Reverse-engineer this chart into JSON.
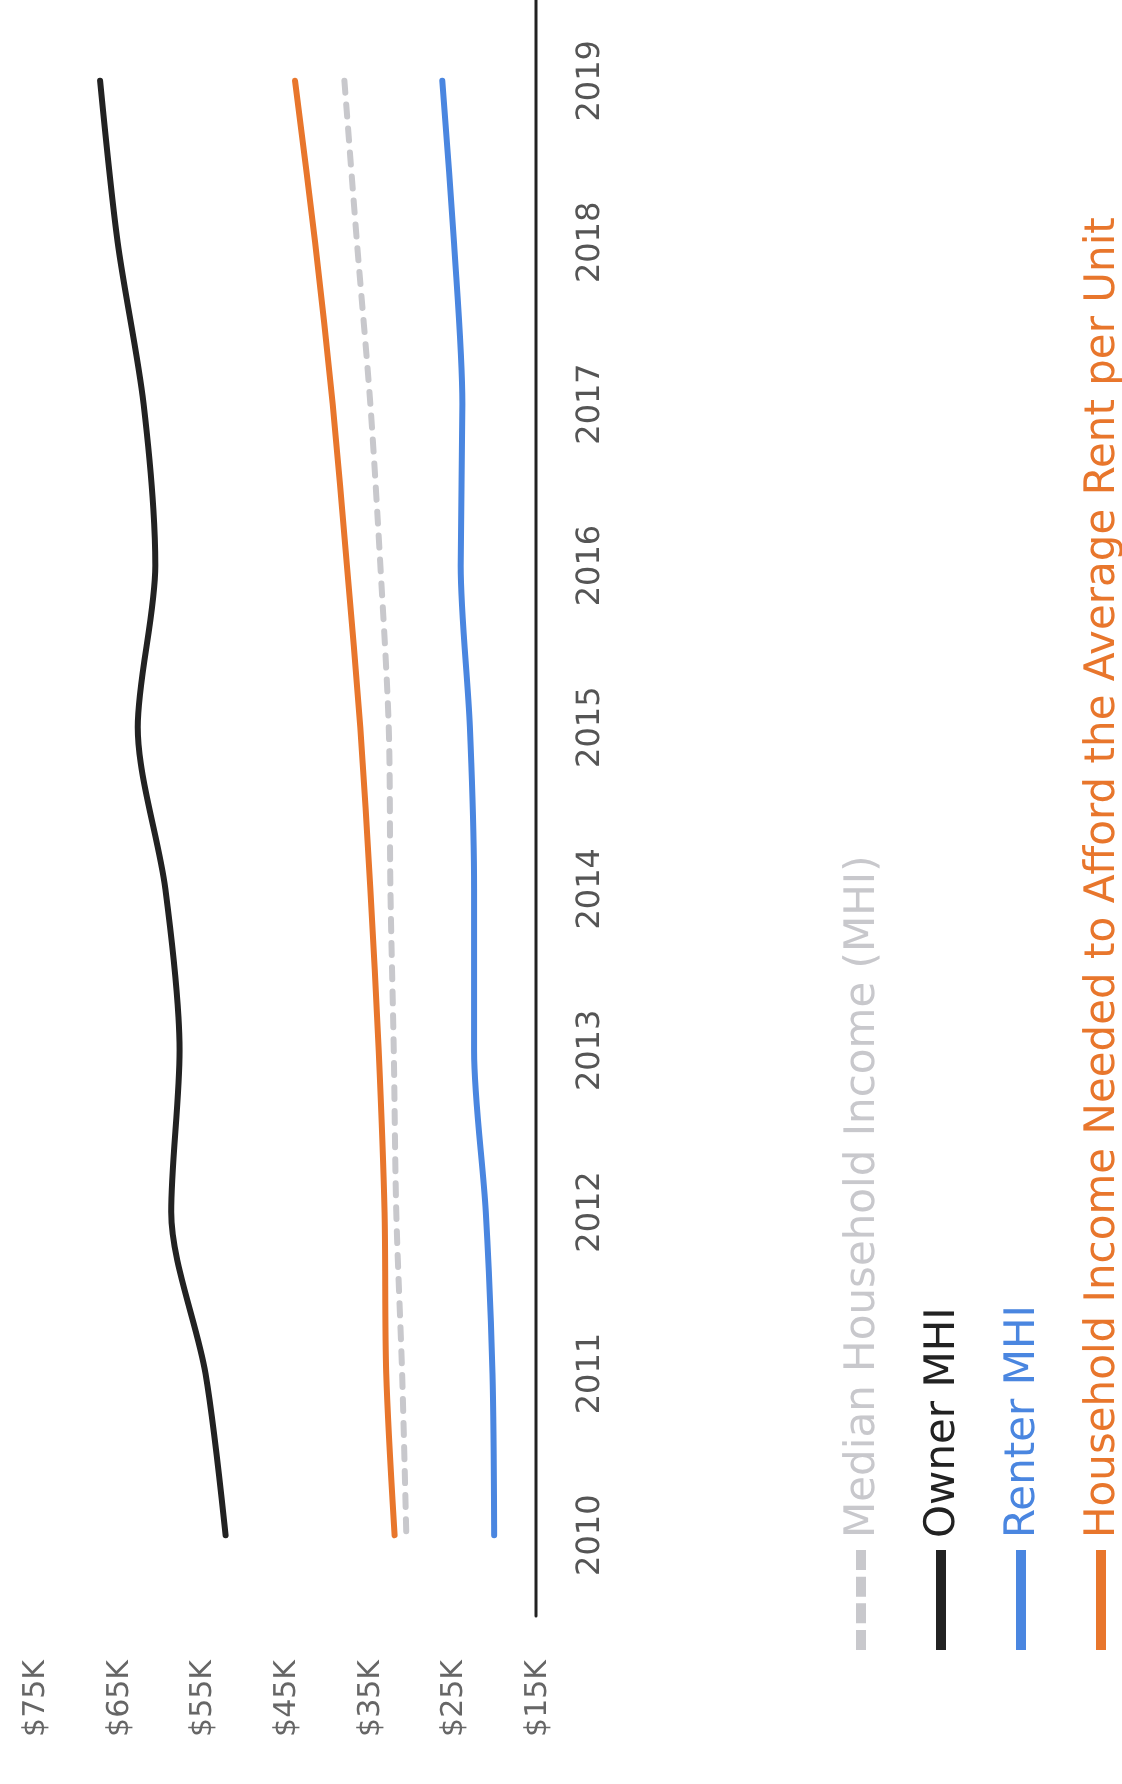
{
  "chart_data": {
    "type": "line",
    "orientation": "horizontal",
    "categories": [
      "2019",
      "2018",
      "2017",
      "2016",
      "2015",
      "2014",
      "2013",
      "2012",
      "2011",
      "2010"
    ],
    "xlim": [
      75,
      15
    ],
    "xticks": [
      {
        "value": 75,
        "label": "$75K"
      },
      {
        "value": 65,
        "label": "$65K"
      },
      {
        "value": 55,
        "label": "$55K"
      },
      {
        "value": 45,
        "label": "$45K"
      },
      {
        "value": 35,
        "label": "$35K"
      },
      {
        "value": 25,
        "label": "$25K"
      },
      {
        "value": 15,
        "label": "$15K"
      }
    ],
    "marker": "none",
    "grid": false,
    "legend": "right",
    "series": [
      {
        "name": "Median Household Income (MHI)",
        "color": "#c8c8cc",
        "line_style": "dashed",
        "values": [
          37.9,
          36.4,
          34.8,
          33.6,
          32.6,
          32.4,
          32,
          31.7,
          31,
          30.5
        ]
      },
      {
        "name": "Owner MHI",
        "color": "#222222",
        "values": [
          67.1,
          65,
          61.9,
          60.5,
          62.6,
          59.3,
          57.6,
          58.6,
          54.5,
          52.1
        ]
      },
      {
        "name": "Renter MHI",
        "color": "#4a86e0",
        "values": [
          26.2,
          24.8,
          23.8,
          24,
          22.9,
          22.4,
          22.4,
          21,
          20.2,
          20
        ]
      },
      {
        "name": "Household Income Needed to Afford the Average Rent per Unit",
        "color": "#e8762c",
        "values": [
          43.8,
          41.4,
          39.3,
          37.6,
          36,
          34.8,
          33.8,
          33.1,
          32.9,
          31.9
        ]
      }
    ]
  }
}
